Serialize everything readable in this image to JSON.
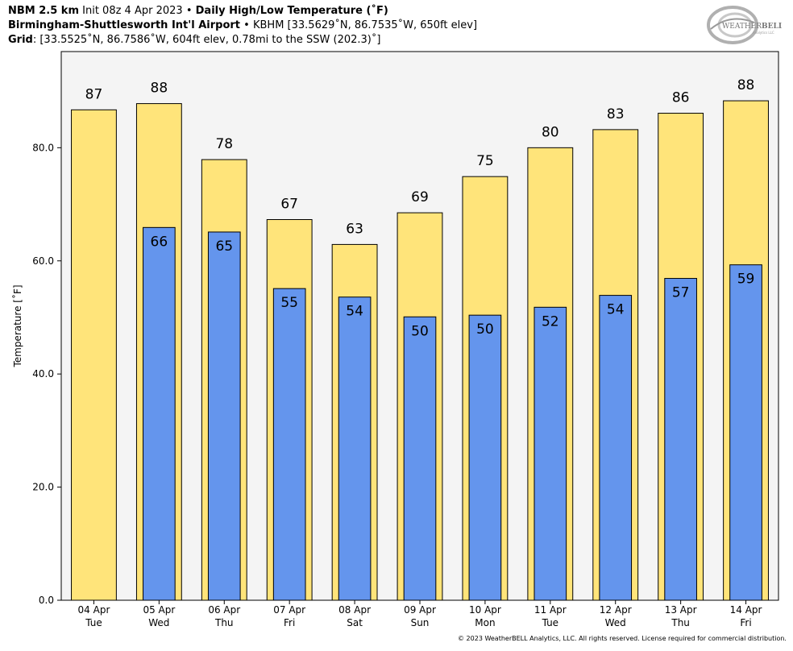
{
  "header": {
    "line1_model": "NBM 2.5 km",
    "line1_init": "Init 08z 4 Apr 2023",
    "line1_product": "Daily High/Low Temperature (˚F)",
    "line2_station": "Birmingham-Shuttlesworth Int'l Airport",
    "line2_details": "KBHM [33.5629˚N, 86.7535˚W, 650ft elev]",
    "line3_label": "Grid",
    "line3_details": ": [33.5525˚N, 86.7586˚W, 604ft elev, 0.78mi to the SSW (202.3)˚]",
    "separator": "•"
  },
  "logo": {
    "text_main": "WEATHER",
    "text_bold": "BELL",
    "text_sub": "Analytics LLC"
  },
  "copyright": "© 2023 WeatherBELL Analytics, LLC. All rights reserved. License required for commercial distribution.",
  "chart_data": {
    "type": "bar",
    "ylabel": "Temperature [˚F]",
    "ylim": [
      0,
      97
    ],
    "yticks": [
      0,
      20,
      40,
      60,
      80
    ],
    "ytick_labels": [
      "0.0",
      "20.0",
      "40.0",
      "60.0",
      "80.0"
    ],
    "categories": [
      {
        "date": "04 Apr",
        "day": "Tue"
      },
      {
        "date": "05 Apr",
        "day": "Wed"
      },
      {
        "date": "06 Apr",
        "day": "Thu"
      },
      {
        "date": "07 Apr",
        "day": "Fri"
      },
      {
        "date": "08 Apr",
        "day": "Sat"
      },
      {
        "date": "09 Apr",
        "day": "Sun"
      },
      {
        "date": "10 Apr",
        "day": "Mon"
      },
      {
        "date": "11 Apr",
        "day": "Tue"
      },
      {
        "date": "12 Apr",
        "day": "Wed"
      },
      {
        "date": "13 Apr",
        "day": "Thu"
      },
      {
        "date": "14 Apr",
        "day": "Fri"
      }
    ],
    "series": [
      {
        "values": [
          86.7,
          87.8,
          77.9,
          67.3,
          62.9,
          68.5,
          74.9,
          80.0,
          83.2,
          86.1,
          88.3
        ],
        "labels": [
          "87",
          "88",
          "78",
          "67",
          "63",
          "69",
          "75",
          "80",
          "83",
          "86",
          "88"
        ],
        "color": "#FFE47A"
      },
      {
        "values": [
          null,
          65.9,
          65.1,
          55.1,
          53.6,
          50.1,
          50.4,
          51.8,
          53.9,
          56.9,
          59.3
        ],
        "labels": [
          "",
          "66",
          "65",
          "55",
          "54",
          "50",
          "50",
          "52",
          "54",
          "57",
          "59"
        ],
        "color": "#6495ED"
      }
    ],
    "plot_background": "#F4F4F4",
    "grid": false,
    "legend": "none"
  }
}
